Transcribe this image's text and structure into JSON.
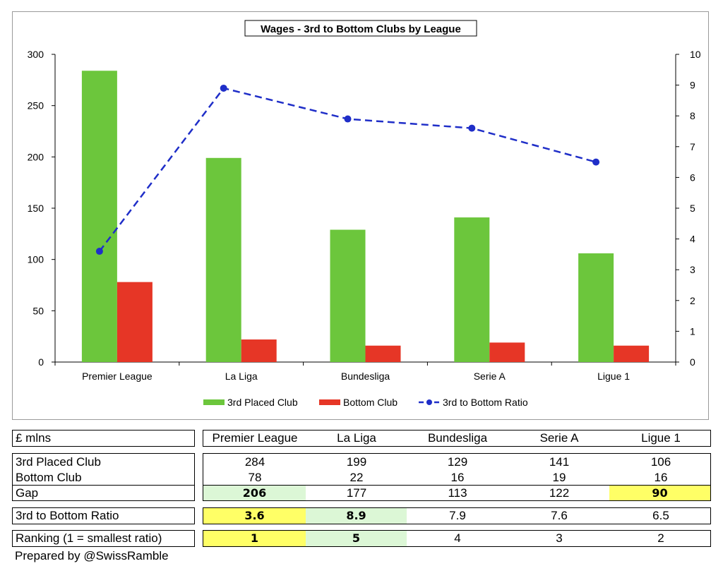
{
  "chart_data": {
    "type": "bar",
    "title": "Wages - 3rd to Bottom Clubs by League",
    "categories": [
      "Premier League",
      "La Liga",
      "Bundesliga",
      "Serie A",
      "Ligue 1"
    ],
    "series": [
      {
        "name": "3rd Placed Club",
        "type": "bar",
        "axis": "left",
        "color": "#6cc63c",
        "values": [
          284,
          199,
          129,
          141,
          106
        ]
      },
      {
        "name": "Bottom Club",
        "type": "bar",
        "axis": "left",
        "color": "#e63626",
        "values": [
          78,
          22,
          16,
          19,
          16
        ]
      },
      {
        "name": "3rd to Bottom Ratio",
        "type": "line",
        "axis": "right",
        "color": "#1f2ec8",
        "values": [
          3.6,
          8.9,
          7.9,
          7.6,
          6.5
        ]
      }
    ],
    "ylim": [
      0,
      300
    ],
    "yticks": [
      0,
      50,
      100,
      150,
      200,
      250,
      300
    ],
    "y2lim": [
      0,
      10
    ],
    "y2ticks": [
      0,
      1,
      2,
      3,
      4,
      5,
      6,
      7,
      8,
      9,
      10
    ],
    "grid": false,
    "legend": "bottom"
  },
  "table": {
    "unit_label": "£ mlns",
    "headers": [
      "Premier League",
      "La Liga",
      "Bundesliga",
      "Serie A",
      "Ligue 1"
    ],
    "rows": {
      "third": {
        "label": "3rd Placed Club",
        "values": [
          "284",
          "199",
          "129",
          "141",
          "106"
        ]
      },
      "bottom": {
        "label": "Bottom Club",
        "values": [
          "78",
          "22",
          "16",
          "19",
          "16"
        ]
      },
      "gap": {
        "label": "Gap",
        "values": [
          "206",
          "177",
          "113",
          "122",
          "90"
        ]
      },
      "ratio": {
        "label": "3rd to Bottom Ratio",
        "values": [
          "3.6",
          "8.9",
          "7.9",
          "7.6",
          "6.5"
        ]
      },
      "ranking": {
        "label": "Ranking (1 = smallest ratio)",
        "values": [
          "1",
          "5",
          "4",
          "3",
          "2"
        ]
      }
    },
    "highlight_colors": {
      "yellow": "#ffff66",
      "green": "#dcf7d6"
    }
  },
  "footer": {
    "credit": "Prepared by @SwissRamble"
  }
}
